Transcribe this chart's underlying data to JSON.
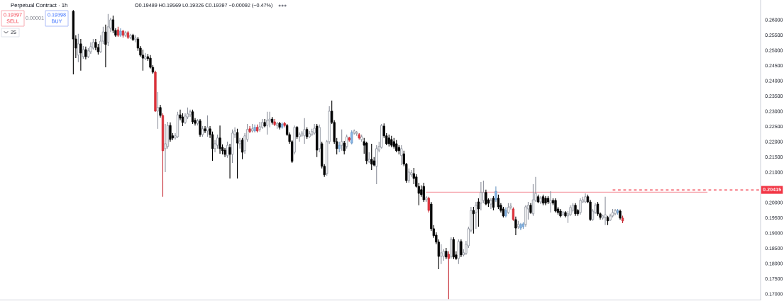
{
  "chart_data": {
    "type": "candlestick",
    "title": "Perpetual Contract · 1h",
    "subtitle": "O0.19489 H0.19569 L0.19326 C0.19397 −0.00092 (−0.47%)",
    "categories": [
      null,
      null,
      null,
      null,
      null,
      null,
      null,
      null,
      null,
      null,
      null,
      null,
      null,
      null,
      null,
      null,
      null,
      null,
      null,
      null,
      null,
      null,
      null,
      null,
      null,
      null,
      null,
      null,
      null,
      null,
      null,
      null,
      null,
      null,
      null,
      null,
      null,
      null,
      null,
      null,
      null,
      null,
      null,
      null,
      null,
      null,
      null,
      null,
      null,
      null,
      null,
      null,
      null,
      null,
      null,
      null,
      null,
      null,
      null,
      null,
      null,
      null,
      null,
      null,
      null,
      null,
      null,
      null,
      null,
      null,
      null,
      null,
      null,
      null,
      null,
      null,
      null,
      null,
      null,
      null,
      null,
      null,
      null,
      null,
      null,
      null,
      null,
      null,
      null,
      null,
      null,
      null,
      null,
      null,
      null,
      null,
      null,
      null,
      null,
      null,
      null,
      null,
      null,
      null,
      null,
      null,
      null,
      null,
      null,
      null,
      null,
      null,
      null,
      null,
      null,
      null,
      null,
      null,
      null,
      null,
      null,
      null,
      null,
      null,
      null,
      null,
      null,
      null,
      null,
      null,
      null,
      null,
      null,
      null,
      null,
      null,
      null,
      null,
      null,
      null,
      null,
      null,
      null,
      null,
      null,
      null,
      null,
      null,
      null,
      null,
      null,
      null,
      null,
      null,
      null,
      null,
      null,
      null,
      null,
      null,
      null,
      null,
      null,
      null,
      null,
      null,
      null,
      null,
      null,
      null,
      null,
      null,
      null,
      null,
      null,
      null,
      null,
      null,
      null,
      null,
      null,
      null,
      null,
      null,
      null,
      null,
      null,
      null,
      null,
      null,
      null,
      null,
      null,
      null,
      null,
      null,
      null,
      null,
      null,
      null,
      null,
      null,
      null,
      null,
      null,
      null,
      null,
      null,
      null,
      null,
      null,
      null,
      null,
      null,
      null,
      null,
      null,
      null,
      null,
      null,
      null,
      null,
      null,
      null,
      null,
      null,
      null,
      null,
      null,
      null,
      null,
      null,
      null,
      null,
      null,
      null,
      null,
      null,
      null,
      null,
      null,
      null,
      null,
      null,
      null,
      null,
      null,
      null,
      null,
      null,
      null,
      null,
      null,
      null,
      null,
      null,
      null,
      null,
      null,
      null,
      null,
      null,
      null,
      null,
      null,
      null,
      null,
      null,
      null,
      null,
      null,
      null,
      null,
      null,
      null,
      null,
      null,
      null,
      null,
      null,
      null,
      null,
      null,
      null,
      null,
      null,
      null,
      null,
      null,
      null,
      null,
      null,
      null,
      null,
      null,
      null,
      null,
      null,
      null,
      null,
      null,
      null,
      null,
      null,
      null,
      null
    ],
    "ohlc": [
      null,
      null,
      null,
      null,
      null,
      null,
      null,
      null,
      null,
      null,
      null,
      null,
      null,
      null,
      null,
      null,
      null,
      null,
      null,
      null,
      null,
      null,
      null,
      null,
      null,
      null,
      null,
      null,
      null,
      [
        0.2628,
        0.2632,
        0.2421,
        0.2537
      ],
      [
        0.2537,
        0.2549,
        0.2474,
        0.2507
      ],
      [
        0.2484,
        0.2554,
        0.2461,
        0.2521
      ],
      [
        0.2521,
        0.2537,
        0.2433,
        0.2491
      ],
      [
        0.2479,
        0.2514,
        0.2472,
        0.2502
      ],
      [
        0.2502,
        0.2512,
        0.247,
        0.2479
      ],
      [
        0.2479,
        0.2507,
        0.2474,
        0.2498
      ],
      [
        0.2495,
        0.2526,
        0.2488,
        0.2512
      ],
      [
        0.2507,
        0.2537,
        0.2502,
        0.2526
      ],
      [
        0.2526,
        0.2537,
        0.25,
        0.2509
      ],
      [
        0.2509,
        0.2521,
        0.2486,
        0.2495
      ],
      [
        0.2495,
        0.2549,
        0.2491,
        0.253
      ],
      [
        0.253,
        0.2577,
        0.2521,
        0.256
      ],
      [
        0.256,
        0.2584,
        0.2444,
        0.2519
      ],
      [
        0.2526,
        0.2619,
        0.2514,
        0.2577
      ],
      [
        0.2572,
        0.2607,
        0.256,
        0.26
      ],
      [
        0.26,
        0.2614,
        0.2556,
        0.2565
      ],
      [
        0.2565,
        0.2572,
        0.2544,
        0.2549
      ],
      [
        0.2567,
        0.2577,
        0.2544,
        0.2549
      ],
      [
        0.2549,
        0.2572,
        0.2544,
        0.2563
      ],
      [
        0.2563,
        0.2567,
        0.2542,
        0.2549
      ],
      [
        0.2549,
        0.2563,
        0.2544,
        0.2558
      ],
      [
        0.2558,
        0.2563,
        0.2537,
        0.2542
      ],
      [
        0.2542,
        0.2554,
        0.2537,
        0.2549
      ],
      [
        0.2549,
        0.2554,
        0.253,
        0.2535
      ],
      [
        0.2535,
        0.2549,
        0.2526,
        0.254
      ],
      [
        0.2537,
        0.2544,
        0.2498,
        0.2507
      ],
      [
        0.2507,
        0.2514,
        0.2479,
        0.2484
      ],
      [
        0.2484,
        0.2502,
        0.2433,
        0.2474
      ],
      [
        0.2472,
        0.2491,
        0.2468,
        0.2479
      ],
      [
        0.2479,
        0.2488,
        0.2465,
        0.2472
      ],
      [
        0.2474,
        0.2484,
        0.244,
        0.2444
      ],
      [
        0.2444,
        0.2451,
        0.2423,
        0.2428
      ],
      [
        0.2428,
        0.2433,
        0.2298,
        0.23
      ],
      [
        0.23,
        0.2363,
        0.2242,
        0.2312
      ],
      [
        0.2312,
        0.2321,
        0.2279,
        0.2286
      ],
      [
        0.2286,
        0.2293,
        0.2019,
        0.217
      ],
      [
        0.2177,
        0.2258,
        0.21,
        0.2193
      ],
      [
        0.2184,
        0.2265,
        0.2177,
        0.2253
      ],
      [
        0.2253,
        0.2263,
        0.22,
        0.2207
      ],
      [
        0.2219,
        0.2228,
        0.2205,
        0.2212
      ],
      [
        0.2212,
        0.2228,
        0.2207,
        0.2219
      ],
      [
        0.2216,
        0.2298,
        0.2212,
        0.2288
      ],
      [
        0.2288,
        0.2305,
        0.227,
        0.2277
      ],
      [
        0.2281,
        0.2293,
        0.2251,
        0.2263
      ],
      [
        0.2263,
        0.2293,
        0.2258,
        0.2284
      ],
      [
        0.2281,
        0.2312,
        0.2274,
        0.2291
      ],
      [
        0.2288,
        0.2305,
        0.2281,
        0.2298
      ],
      [
        0.2298,
        0.2305,
        0.2258,
        0.2265
      ],
      [
        0.227,
        0.2277,
        0.2253,
        0.226
      ],
      [
        0.226,
        0.2274,
        0.2253,
        0.2268
      ],
      [
        0.2268,
        0.2274,
        0.2216,
        0.2223
      ],
      [
        0.2223,
        0.2251,
        0.2216,
        0.2242
      ],
      [
        0.2242,
        0.2251,
        0.2228,
        0.2235
      ],
      [
        0.2235,
        0.2286,
        0.2216,
        0.2247
      ],
      [
        0.2242,
        0.2251,
        0.2212,
        0.2223
      ],
      [
        0.2223,
        0.2233,
        0.2137,
        0.2177
      ],
      [
        0.2177,
        0.2205,
        0.2165,
        0.2193
      ],
      [
        0.2188,
        0.2223,
        0.2177,
        0.2212
      ],
      [
        0.2212,
        0.2253,
        0.216,
        0.2177
      ],
      [
        0.2181,
        0.2191,
        0.2158,
        0.217
      ],
      [
        0.2172,
        0.2179,
        0.2149,
        0.2158
      ],
      [
        0.2154,
        0.22,
        0.2147,
        0.2188
      ],
      [
        0.2181,
        0.2193,
        0.2079,
        0.2158
      ],
      [
        0.2158,
        0.224,
        0.213,
        0.2228
      ],
      [
        0.2223,
        0.2247,
        0.2212,
        0.2235
      ],
      [
        0.223,
        0.2242,
        0.2079,
        0.2195
      ],
      [
        0.2193,
        0.2212,
        0.2177,
        0.2202
      ],
      [
        0.2205,
        0.2212,
        0.2142,
        0.2165
      ],
      [
        0.217,
        0.2228,
        0.216,
        0.2219
      ],
      [
        0.2207,
        0.2258,
        0.22,
        0.224
      ],
      [
        0.2242,
        0.2251,
        0.2228,
        0.2233
      ],
      [
        0.2235,
        0.2258,
        0.223,
        0.2242
      ],
      [
        0.2235,
        0.2256,
        0.223,
        0.2247
      ],
      [
        0.2247,
        0.2256,
        0.223,
        0.2235
      ],
      [
        0.224,
        0.2265,
        0.2233,
        0.2249
      ],
      [
        0.2247,
        0.2274,
        0.2242,
        0.2263
      ],
      [
        0.2263,
        0.2274,
        0.2247,
        0.2251
      ],
      [
        0.2253,
        0.2298,
        0.2223,
        0.227
      ],
      [
        0.2268,
        0.2298,
        0.2247,
        0.2274
      ],
      [
        0.2274,
        0.2281,
        0.2256,
        0.2263
      ],
      [
        0.2265,
        0.2274,
        0.2251,
        0.2256
      ],
      [
        0.2253,
        0.2265,
        0.2242,
        0.226
      ],
      [
        0.226,
        0.2265,
        0.224,
        0.2247
      ],
      [
        0.2247,
        0.2263,
        0.2242,
        0.2258
      ],
      [
        0.226,
        0.2265,
        0.2247,
        0.2253
      ],
      [
        0.2253,
        0.2258,
        0.2219,
        0.2223
      ],
      [
        0.2223,
        0.223,
        0.2193,
        0.22
      ],
      [
        0.22,
        0.2205,
        0.213,
        0.2135
      ],
      [
        0.2165,
        0.2253,
        0.2158,
        0.2247
      ],
      [
        0.2247,
        0.2251,
        0.2209,
        0.2216
      ],
      [
        0.2216,
        0.223,
        0.22,
        0.2223
      ],
      [
        0.2221,
        0.2235,
        0.2216,
        0.2228
      ],
      [
        0.2219,
        0.2277,
        0.2193,
        0.224
      ],
      [
        0.224,
        0.2247,
        0.2209,
        0.2216
      ],
      [
        0.2216,
        0.2235,
        0.2212,
        0.2226
      ],
      [
        0.2223,
        0.2242,
        0.2219,
        0.2233
      ],
      [
        0.2228,
        0.2258,
        0.2223,
        0.2244
      ],
      [
        0.2251,
        0.2258,
        0.2149,
        0.2172
      ],
      [
        0.2177,
        0.2256,
        0.2165,
        0.2247
      ],
      [
        0.2193,
        0.22,
        0.2112,
        0.2119
      ],
      [
        0.2119,
        0.2126,
        0.2084,
        0.2091
      ],
      [
        0.2095,
        0.2205,
        0.2088,
        0.22
      ],
      [
        0.22,
        0.2316,
        0.2193,
        0.23
      ],
      [
        0.23,
        0.2335,
        0.2258,
        0.2263
      ],
      [
        0.2263,
        0.227,
        0.2193,
        0.22
      ],
      [
        0.22,
        0.2212,
        0.2158,
        0.2177
      ],
      [
        0.2177,
        0.22,
        0.2165,
        0.2188
      ],
      [
        0.2188,
        0.224,
        0.217,
        0.22
      ],
      [
        0.2195,
        0.2202,
        0.2158,
        0.217
      ],
      [
        0.2184,
        0.2223,
        0.2177,
        0.2216
      ],
      [
        0.2212,
        0.2216,
        0.22,
        0.2205
      ],
      [
        0.2195,
        0.2237,
        0.2191,
        0.223
      ],
      [
        0.2228,
        0.224,
        0.2223,
        0.2235
      ],
      [
        0.2226,
        0.2235,
        0.2219,
        0.223
      ],
      [
        0.2223,
        0.2228,
        0.2207,
        0.2212
      ],
      [
        0.2207,
        0.2223,
        0.22,
        0.2216
      ],
      [
        0.22,
        0.2212,
        0.216,
        0.2188
      ],
      [
        0.2195,
        0.22,
        0.2126,
        0.2137
      ],
      [
        0.2135,
        0.2165,
        0.213,
        0.2142
      ],
      [
        0.2142,
        0.2193,
        0.2107,
        0.2126
      ],
      [
        0.2137,
        0.2149,
        0.2119,
        0.2123
      ],
      [
        0.2119,
        0.2188,
        0.206,
        0.2177
      ],
      [
        0.2172,
        0.22,
        0.2165,
        0.2184
      ],
      [
        0.2181,
        0.2258,
        0.2177,
        0.2253
      ],
      [
        0.2251,
        0.226,
        0.2212,
        0.2219
      ],
      [
        0.2219,
        0.2228,
        0.2188,
        0.2193
      ],
      [
        0.2212,
        0.2223,
        0.2184,
        0.2193
      ],
      [
        0.2207,
        0.2219,
        0.2181,
        0.2188
      ],
      [
        0.22,
        0.2212,
        0.2177,
        0.2184
      ],
      [
        0.2193,
        0.2205,
        0.2165,
        0.217
      ],
      [
        0.2181,
        0.2188,
        0.2158,
        0.217
      ],
      [
        0.2154,
        0.2188,
        0.2123,
        0.2177
      ],
      [
        0.216,
        0.217,
        0.2119,
        0.2126
      ],
      [
        0.2126,
        0.213,
        0.2065,
        0.2072
      ],
      [
        0.2072,
        0.2112,
        0.2065,
        0.21
      ],
      [
        0.2091,
        0.2107,
        0.2084,
        0.2098
      ],
      [
        0.2095,
        0.2114,
        0.206,
        0.2079
      ],
      [
        0.2084,
        0.2093,
        0.2049,
        0.2053
      ],
      [
        0.2053,
        0.2065,
        0.1991,
        0.203
      ],
      [
        0.2042,
        0.2056,
        0.2019,
        0.2026
      ],
      [
        0.2053,
        0.2065,
        0.2002,
        0.2009
      ],
      [
        0.2009,
        0.2021,
        0.2002,
        0.2016
      ],
      [
        0.2014,
        0.2019,
        0.1967,
        0.1974
      ],
      [
        0.1995,
        0.2002,
        0.1907,
        0.1914
      ],
      [
        0.1914,
        0.1926,
        0.1884,
        0.1891
      ],
      [
        0.1893,
        0.1902,
        0.1863,
        0.187
      ],
      [
        0.187,
        0.1879,
        0.1781,
        0.1823
      ],
      [
        0.1823,
        0.1863,
        0.1798,
        0.1835
      ],
      [
        0.1823,
        0.1847,
        0.1809,
        0.184
      ],
      [
        0.184,
        0.1851,
        0.1814,
        0.1821
      ],
      [
        0.183,
        0.184,
        0.1683,
        0.1816
      ],
      [
        0.1823,
        0.1886,
        0.1816,
        0.1879
      ],
      [
        0.1879,
        0.1886,
        0.1814,
        0.1821
      ],
      [
        0.1828,
        0.184,
        0.1812,
        0.1816
      ],
      [
        0.1816,
        0.1879,
        0.1798,
        0.1872
      ],
      [
        0.1872,
        0.1879,
        0.1821,
        0.1828
      ],
      [
        0.1828,
        0.1847,
        0.1823,
        0.1835
      ],
      [
        0.1833,
        0.1874,
        0.1828,
        0.1863
      ],
      [
        0.1858,
        0.1921,
        0.1851,
        0.1914
      ],
      [
        0.1909,
        0.1986,
        0.1902,
        0.1974
      ],
      [
        0.1974,
        0.1986,
        0.1898,
        0.1963
      ],
      [
        0.1967,
        0.2002,
        0.1914,
        0.1991
      ],
      [
        0.2002,
        0.2014,
        0.1921,
        0.1979
      ],
      [
        0.1998,
        0.2067,
        0.1974,
        0.2033
      ],
      [
        0.2007,
        0.2072,
        0.1998,
        0.2033
      ],
      [
        0.2033,
        0.2042,
        0.1991,
        0.1995
      ],
      [
        0.2009,
        0.2014,
        0.1986,
        0.1998
      ],
      [
        0.1995,
        0.2014,
        0.1979,
        0.2007
      ],
      [
        0.2014,
        0.2021,
        0.1974,
        0.1984
      ],
      [
        0.2009,
        0.2053,
        0.2002,
        0.2037
      ],
      [
        0.2014,
        0.2026,
        0.1979,
        0.1986
      ],
      [
        0.1991,
        0.1998,
        0.1967,
        0.1974
      ],
      [
        0.1979,
        0.1986,
        0.1951,
        0.1956
      ],
      [
        0.1956,
        0.1984,
        0.1951,
        0.1974
      ],
      [
        0.1967,
        0.1998,
        0.1963,
        0.1984
      ],
      [
        0.1984,
        0.1998,
        0.1977,
        0.1988
      ],
      [
        0.1979,
        0.1984,
        0.194,
        0.1944
      ],
      [
        0.1944,
        0.1954,
        0.1893,
        0.1916
      ],
      [
        0.1921,
        0.194,
        0.1914,
        0.1928
      ],
      [
        0.1916,
        0.1933,
        0.1909,
        0.1928
      ],
      [
        0.1921,
        0.1935,
        0.1914,
        0.193
      ],
      [
        0.1928,
        0.1991,
        0.1921,
        0.1986
      ],
      [
        0.1979,
        0.2002,
        0.1944,
        0.1991
      ],
      [
        0.1991,
        0.1998,
        0.1963,
        0.1967
      ],
      [
        0.1963,
        0.206,
        0.1956,
        0.2009
      ],
      [
        0.2007,
        0.2084,
        0.2002,
        0.203
      ],
      [
        0.2019,
        0.2026,
        0.1998,
        0.2002
      ],
      [
        0.2002,
        0.2021,
        0.1995,
        0.2014
      ],
      [
        0.2019,
        0.2026,
        0.1991,
        0.1998
      ],
      [
        0.2014,
        0.2021,
        0.1991,
        0.1998
      ],
      [
        0.2014,
        0.2021,
        0.1995,
        0.2002
      ],
      [
        0.1998,
        0.2037,
        0.1967,
        0.2007
      ],
      [
        0.2007,
        0.2014,
        0.1991,
        0.1998
      ],
      [
        0.2007,
        0.2014,
        0.1967,
        0.1972
      ],
      [
        0.1979,
        0.1986,
        0.196,
        0.1967
      ],
      [
        0.1972,
        0.1979,
        0.1951,
        0.1956
      ],
      [
        0.196,
        0.1972,
        0.1956,
        0.1967
      ],
      [
        0.1967,
        0.1972,
        0.1951,
        0.1956
      ],
      [
        0.1956,
        0.1972,
        0.1933,
        0.1963
      ],
      [
        0.196,
        0.1991,
        0.1956,
        0.1984
      ],
      [
        0.1974,
        0.1998,
        0.1967,
        0.1991
      ],
      [
        0.1991,
        0.1998,
        0.1956,
        0.1963
      ],
      [
        0.1974,
        0.1979,
        0.1956,
        0.1963
      ],
      [
        0.1967,
        0.2014,
        0.196,
        0.2007
      ],
      [
        0.2002,
        0.2019,
        0.1998,
        0.2009
      ],
      [
        0.2002,
        0.203,
        0.1998,
        0.2019
      ],
      [
        0.2019,
        0.2026,
        0.1998,
        0.2002
      ],
      [
        0.2002,
        0.2009,
        0.194,
        0.1944
      ],
      [
        0.1944,
        0.1979,
        0.194,
        0.1972
      ],
      [
        0.1967,
        0.1998,
        0.1963,
        0.1991
      ],
      [
        0.1995,
        0.2002,
        0.1956,
        0.1963
      ],
      [
        0.1963,
        0.1967,
        0.1944,
        0.1951
      ],
      [
        0.1949,
        0.196,
        0.1944,
        0.1956
      ],
      [
        0.1951,
        0.2019,
        0.1926,
        0.196
      ],
      [
        0.1951,
        0.1956,
        0.1926,
        0.194
      ],
      [
        0.1942,
        0.1963,
        0.194,
        0.1956
      ],
      [
        0.1956,
        0.1979,
        0.1951,
        0.1967
      ],
      [
        0.1963,
        0.1979,
        0.1958,
        0.1974
      ],
      [
        0.1967,
        0.1979,
        0.196,
        0.1974
      ],
      [
        0.1972,
        0.1977,
        0.1944,
        0.1949
      ],
      [
        0.19489,
        0.19569,
        0.19326,
        0.19397
      ],
      null,
      null,
      null,
      null,
      null,
      null,
      null,
      null,
      null,
      null,
      null,
      null,
      null,
      null,
      null,
      null,
      null,
      null,
      null,
      null,
      null,
      null,
      null,
      null,
      null,
      null,
      null,
      null,
      null,
      null,
      null,
      null,
      null,
      null,
      null,
      null,
      null,
      null,
      null,
      null,
      null,
      null,
      null,
      null,
      null,
      null,
      null,
      null,
      null,
      null,
      null,
      null,
      null,
      null,
      null
    ],
    "colors": [
      null,
      null,
      null,
      null,
      null,
      null,
      null,
      null,
      null,
      null,
      null,
      null,
      null,
      null,
      null,
      null,
      null,
      null,
      null,
      null,
      null,
      null,
      null,
      null,
      null,
      null,
      null,
      null,
      null,
      "#000000",
      "#000000",
      "#ffffff",
      "#000000",
      "#ffffff",
      "#000000",
      "#ffffff",
      "#ffffff",
      "#ffffff",
      "#000000",
      "#000000",
      "#ffffff",
      "#ffffff",
      "#000000",
      "#ffffff",
      "#ffffff",
      "#000000",
      "#000000",
      "#e8323c",
      "#84b5e8",
      "#e8323c",
      "#ffffff",
      "#e8323c",
      "#ffffff",
      "#000000",
      "#ffffff",
      "#000000",
      "#000000",
      "#000000",
      "#ffffff",
      "#000000",
      "#000000",
      "#000000",
      "#e8323c",
      "#ffffff",
      "#000000",
      "#e8323c",
      "#ffffff",
      "#ffffff",
      "#000000",
      "#000000",
      "#ffffff",
      "#ffffff",
      "#000000",
      "#000000",
      "#ffffff",
      "#ffffff",
      "#ffffff",
      "#000000",
      "#000000",
      "#ffffff",
      "#000000",
      "#ffffff",
      "#000000",
      "#ffffff",
      "#000000",
      "#000000",
      "#ffffff",
      "#ffffff",
      "#000000",
      "#000000",
      "#000000",
      "#ffffff",
      "#000000",
      "#ffffff",
      "#ffffff",
      "#000000",
      "#ffffff",
      "#000000",
      "#ffffff",
      "#ffffff",
      "#e8323c",
      "#ffffff",
      "#84b5e8",
      "#e8323c",
      "#ffffff",
      "#ffffff",
      "#000000",
      "#ffffff",
      "#ffffff",
      "#000000",
      "#e8323c",
      "#ffffff",
      "#000000",
      "#84b5e8",
      "#e8323c",
      "#000000",
      "#000000",
      "#000000",
      "#ffffff",
      "#000000",
      "#ffffff",
      "#ffffff",
      "#ffffff",
      "#000000",
      "#ffffff",
      "#ffffff",
      "#ffffff",
      "#000000",
      "#ffffff",
      "#000000",
      "#000000",
      "#ffffff",
      "#ffffff",
      "#000000",
      "#000000",
      "#000000",
      "#84b5e8",
      "#ffffff",
      "#000000",
      "#ffffff",
      "#e8323c",
      "#84b5e8",
      "#ffffff",
      "#ffffff",
      "#e8323c",
      "#ffffff",
      "#000000",
      "#000000",
      "#ffffff",
      "#000000",
      "#000000",
      "#ffffff",
      "#ffffff",
      "#ffffff",
      "#000000",
      "#000000",
      "#000000",
      "#000000",
      "#000000",
      "#000000",
      "#000000",
      "#ffffff",
      "#000000",
      "#000000",
      "#ffffff",
      "#ffffff",
      "#000000",
      "#000000",
      "#000000",
      "#000000",
      "#000000",
      "#ffffff",
      "#e8323c",
      "#000000",
      "#000000",
      "#000000",
      "#000000",
      "#ffffff",
      "#ffffff",
      "#000000",
      "#e8323c",
      "#ffffff",
      "#000000",
      "#000000",
      "#ffffff",
      "#000000",
      "#ffffff",
      "#ffffff",
      "#ffffff",
      "#ffffff",
      "#000000",
      "#ffffff",
      "#000000",
      "#ffffff",
      "#ffffff",
      "#000000",
      "#000000",
      "#ffffff",
      "#000000",
      "#84b5e8",
      "#000000",
      "#000000",
      "#000000",
      "#84b5e8",
      "#ffffff",
      "#ffffff",
      "#e8323c",
      "#000000",
      "#ffffff",
      "#84b5e8",
      "#84b5e8",
      "#ffffff",
      "#ffffff",
      "#000000",
      "#ffffff",
      "#ffffff",
      "#000000",
      "#ffffff",
      "#000000",
      "#000000",
      "#000000",
      "#ffffff",
      "#000000",
      "#000000",
      "#000000",
      "#000000",
      "#ffffff",
      "#000000",
      "#ffffff",
      "#ffffff",
      "#ffffff",
      "#000000",
      "#000000",
      "#ffffff",
      "#ffffff",
      "#ffffff",
      "#000000",
      "#000000",
      "#ffffff",
      "#ffffff",
      "#000000",
      "#000000",
      "#ffffff",
      "#ffffff",
      "#000000",
      "#ffffff",
      "#ffffff",
      "#ffffff",
      "#84b5e8",
      "#000000",
      "#e8323c",
      null,
      null,
      null,
      null,
      null,
      null,
      null,
      null,
      null,
      null,
      null,
      null,
      null,
      null,
      null,
      null,
      null,
      null,
      null,
      null,
      null,
      null,
      null,
      null,
      null,
      null,
      null,
      null,
      null,
      null,
      null,
      null,
      null,
      null,
      null,
      null,
      null,
      null,
      null,
      null,
      null,
      null,
      null,
      null,
      null,
      null,
      null,
      null,
      null,
      null,
      null,
      null,
      null,
      null,
      null
    ],
    "series": [
      {
        "type": "line",
        "color": "#f5a3ab",
        "values": [
          null,
          null,
          null,
          null,
          null,
          null,
          null,
          null,
          null,
          null,
          null,
          null,
          null,
          null,
          null,
          null,
          null,
          null,
          null,
          null,
          null,
          null,
          null,
          null,
          null,
          null,
          null,
          null,
          null,
          null,
          null,
          null,
          null,
          null,
          null,
          null,
          null,
          null,
          null,
          null,
          null,
          null,
          null,
          null,
          null,
          null,
          null,
          null,
          null,
          null,
          null,
          null,
          null,
          null,
          null,
          null,
          null,
          null,
          null,
          null,
          null,
          null,
          null,
          null,
          null,
          null,
          null,
          null,
          null,
          null,
          null,
          null,
          null,
          null,
          null,
          null,
          null,
          null,
          null,
          null,
          null,
          null,
          null,
          null,
          null,
          null,
          null,
          null,
          null,
          null,
          null,
          null,
          null,
          null,
          null,
          null,
          null,
          null,
          null,
          null,
          null,
          null,
          null,
          null,
          null,
          null,
          null,
          null,
          null,
          null,
          null,
          null,
          null,
          null,
          null,
          null,
          null,
          null,
          null,
          null,
          null,
          null,
          null,
          null,
          null,
          null,
          null,
          null,
          null,
          null,
          null,
          null,
          null,
          null,
          null,
          null,
          null,
          null,
          null,
          null,
          null,
          null,
          null,
          null,
          null,
          null,
          null,
          null,
          null,
          null,
          null,
          null,
          null,
          null,
          null,
          null,
          null,
          null,
          null,
          null,
          null,
          null,
          null,
          null,
          null,
          null,
          null,
          null,
          null,
          null,
          null,
          0.2034,
          0.2034,
          0.2034,
          0.2034,
          0.2034,
          0.2034,
          0.2034,
          0.2034,
          0.2034,
          0.2034,
          0.2034,
          0.2034,
          0.2034,
          0.2034,
          0.2034,
          0.2034,
          0.2034,
          0.2034,
          0.2034,
          0.2034,
          0.2034,
          0.2034,
          0.2034,
          0.2034,
          0.2034,
          0.2034,
          0.2034,
          0.2034,
          0.2034,
          0.2034,
          0.2034,
          0.2034,
          0.2034,
          0.2034,
          0.2034,
          0.2034,
          0.2034,
          0.2034,
          0.2034,
          0.2034,
          0.2034,
          0.2034,
          0.2034,
          0.2034,
          0.2034,
          0.2034,
          0.2034,
          0.2034,
          0.2034,
          0.2034,
          0.2034,
          0.2034,
          0.2034,
          0.2034,
          0.2034,
          0.2034,
          0.2034,
          0.2034,
          0.2034,
          0.2034,
          0.2034,
          0.2034,
          0.2034,
          0.2034,
          0.2034,
          0.2034,
          0.2034,
          0.2034,
          0.2034,
          0.2034,
          0.2034,
          0.2034,
          0.2034,
          0.2034,
          0.2034,
          0.2034,
          0.2034,
          0.2034,
          0.2034,
          0.2034,
          0.2034,
          0.2034,
          0.2034,
          0.2034,
          0.2034,
          0.2034,
          0.2034,
          0.2034,
          0.2034,
          0.2034,
          0.2034,
          0.2034,
          0.2034,
          0.2034,
          0.2034,
          0.2034,
          0.2034,
          0.2034,
          0.2034,
          0.2034,
          0.2034,
          0.2034,
          0.2034,
          0.2034,
          0.2034,
          0.2034,
          0.2034,
          0.2034,
          0.2034,
          0.2034,
          0.2034,
          0.2034,
          0.2034,
          0.2034,
          null,
          null,
          null,
          null,
          null,
          null,
          null,
          null,
          null,
          null,
          null,
          null,
          null,
          null,
          null,
          null,
          null,
          null,
          null,
          null,
          null
        ]
      },
      {
        "type": "line",
        "color": "#f23645",
        "line_style": "dashed",
        "values": [
          null,
          null,
          null,
          null,
          null,
          null,
          null,
          null,
          null,
          null,
          null,
          null,
          null,
          null,
          null,
          null,
          null,
          null,
          null,
          null,
          null,
          null,
          null,
          null,
          null,
          null,
          null,
          null,
          null,
          null,
          null,
          null,
          null,
          null,
          null,
          null,
          null,
          null,
          null,
          null,
          null,
          null,
          null,
          null,
          null,
          null,
          null,
          null,
          null,
          null,
          null,
          null,
          null,
          null,
          null,
          null,
          null,
          null,
          null,
          null,
          null,
          null,
          null,
          null,
          null,
          null,
          null,
          null,
          null,
          null,
          null,
          null,
          null,
          null,
          null,
          null,
          null,
          null,
          null,
          null,
          null,
          null,
          null,
          null,
          null,
          null,
          null,
          null,
          null,
          null,
          null,
          null,
          null,
          null,
          null,
          null,
          null,
          null,
          null,
          null,
          null,
          null,
          null,
          null,
          null,
          null,
          null,
          null,
          null,
          null,
          null,
          null,
          null,
          null,
          null,
          null,
          null,
          null,
          null,
          null,
          null,
          null,
          null,
          null,
          null,
          null,
          null,
          null,
          null,
          null,
          null,
          null,
          null,
          null,
          null,
          null,
          null,
          null,
          null,
          null,
          null,
          null,
          null,
          null,
          null,
          null,
          null,
          null,
          null,
          null,
          null,
          null,
          null,
          null,
          null,
          null,
          null,
          null,
          null,
          null,
          null,
          null,
          null,
          null,
          null,
          null,
          null,
          null,
          null,
          null,
          null,
          null,
          null,
          null,
          null,
          null,
          null,
          null,
          null,
          null,
          null,
          null,
          null,
          null,
          null,
          null,
          null,
          null,
          null,
          null,
          null,
          null,
          null,
          null,
          null,
          null,
          null,
          null,
          null,
          null,
          null,
          null,
          null,
          null,
          null,
          null,
          null,
          null,
          null,
          null,
          null,
          null,
          null,
          null,
          null,
          null,
          null,
          null,
          null,
          null,
          null,
          null,
          null,
          null,
          null,
          null,
          null,
          null,
          null,
          null,
          null,
          null,
          null,
          null,
          null,
          null,
          null,
          null,
          null,
          null,
          null,
          null,
          null,
          null,
          null,
          null,
          0.20415,
          0.20415,
          0.20415,
          0.20415,
          0.20415,
          0.20415,
          0.20415,
          0.20415,
          0.20415,
          0.20415,
          0.20415,
          0.20415,
          0.20415,
          0.20415,
          0.20415,
          0.20415,
          0.20415,
          0.20415,
          0.20415,
          0.20415,
          0.20415,
          0.20415,
          0.20415,
          0.20415,
          0.20415,
          0.20415,
          0.20415,
          0.20415,
          0.20415,
          0.20415,
          0.20415,
          0.20415,
          0.20415,
          0.20415,
          0.20415,
          0.20415,
          0.20415,
          0.20415,
          0.20415,
          0.20415,
          0.20415,
          0.20415,
          0.20415,
          0.20415,
          0.20415,
          0.20415,
          0.20415,
          0.20415,
          0.20415,
          0.20415,
          0.20415,
          0.20415,
          0.20415,
          0.20415,
          0.20415,
          0.20415,
          0.20415,
          0.20415,
          0.20415,
          0.20415
        ]
      }
    ],
    "ylim": [
      0.168,
      0.2665
    ],
    "yticks": [
      {
        "value": 0.17,
        "label": "0.17000"
      },
      {
        "value": 0.175,
        "label": "0.17500"
      },
      {
        "value": 0.18,
        "label": "0.18000"
      },
      {
        "value": 0.185,
        "label": "0.18500"
      },
      {
        "value": 0.19,
        "label": "0.19000"
      },
      {
        "value": 0.195,
        "label": "0.19500"
      },
      {
        "value": 0.2,
        "label": "0.20000"
      },
      {
        "value": 0.21,
        "label": "0.21000"
      },
      {
        "value": 0.215,
        "label": "0.21500"
      },
      {
        "value": 0.22,
        "label": "0.22000"
      },
      {
        "value": 0.225,
        "label": "0.22500"
      },
      {
        "value": 0.23,
        "label": "0.23000"
      },
      {
        "value": 0.235,
        "label": "0.23500"
      },
      {
        "value": 0.24,
        "label": "0.24000"
      },
      {
        "value": 0.245,
        "label": "0.24500"
      },
      {
        "value": 0.25,
        "label": "0.25000"
      },
      {
        "value": 0.255,
        "label": "0.25500"
      },
      {
        "value": 0.26,
        "label": "0.26000"
      }
    ],
    "tick_labels": "y",
    "annotations": [
      {
        "text": "0.20415",
        "y": 0.20415
      },
      "0.19397",
      "SELL",
      "0.00001",
      "0.19398",
      "BUY",
      "25"
    ]
  }
}
